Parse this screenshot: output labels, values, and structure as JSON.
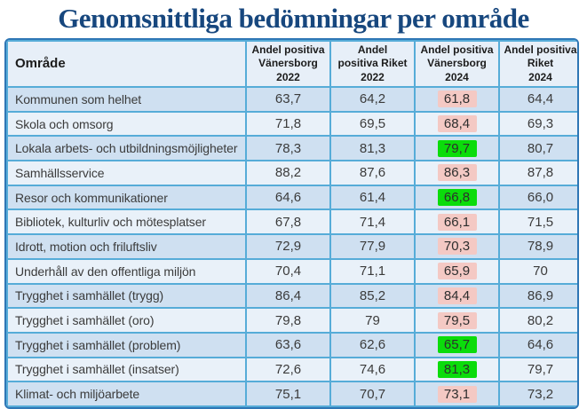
{
  "title": "Genomsnittliga bedömningar per område",
  "table": {
    "headers": {
      "area": "Område",
      "vanersborg_2022": "Andel positiva\nVänersborg\n2022",
      "riket_2022": "Andel\npositiva Riket\n2022",
      "vanersborg_2024": "Andel positiva\nVänersborg\n2024",
      "riket_2024": "Andel positiva\nRiket\n2024"
    },
    "rows": [
      {
        "area": "Kommunen som helhet",
        "vanersborg_2022": "63,7",
        "riket_2022": "64,2",
        "vanersborg_2024": "61,8",
        "highlight_2024": "negative",
        "riket_2024": "64,4"
      },
      {
        "area": "Skola och omsorg",
        "vanersborg_2022": "71,8",
        "riket_2022": "69,5",
        "vanersborg_2024": "68,4",
        "highlight_2024": "negative",
        "riket_2024": "69,3"
      },
      {
        "area": "Lokala arbets- och utbildningsmöjligheter",
        "vanersborg_2022": "78,3",
        "riket_2022": "81,3",
        "vanersborg_2024": "79,7",
        "highlight_2024": "positive",
        "riket_2024": "80,7"
      },
      {
        "area": "Samhällsservice",
        "vanersborg_2022": "88,2",
        "riket_2022": "87,6",
        "vanersborg_2024": "86,3",
        "highlight_2024": "negative",
        "riket_2024": "87,8"
      },
      {
        "area": "Resor och kommunikationer",
        "vanersborg_2022": "64,6",
        "riket_2022": "61,4",
        "vanersborg_2024": "66,8",
        "highlight_2024": "positive",
        "riket_2024": "66,0"
      },
      {
        "area": "Bibliotek, kulturliv och mötesplatser",
        "vanersborg_2022": "67,8",
        "riket_2022": "71,4",
        "vanersborg_2024": "66,1",
        "highlight_2024": "negative",
        "riket_2024": "71,5"
      },
      {
        "area": "Idrott, motion och friluftsliv",
        "vanersborg_2022": "72,9",
        "riket_2022": "77,9",
        "vanersborg_2024": "70,3",
        "highlight_2024": "negative",
        "riket_2024": "78,9"
      },
      {
        "area": "Underhåll av den offentliga miljön",
        "vanersborg_2022": "70,4",
        "riket_2022": "71,1",
        "vanersborg_2024": "65,9",
        "highlight_2024": "negative",
        "riket_2024": "70"
      },
      {
        "area": "Trygghet i samhället (trygg)",
        "vanersborg_2022": "86,4",
        "riket_2022": "85,2",
        "vanersborg_2024": "84,4",
        "highlight_2024": "negative",
        "riket_2024": "86,9"
      },
      {
        "area": "Trygghet i samhället (oro)",
        "vanersborg_2022": "79,8",
        "riket_2022": "79",
        "vanersborg_2024": "79,5",
        "highlight_2024": "negative",
        "riket_2024": "80,2"
      },
      {
        "area": "Trygghet i samhället (problem)",
        "vanersborg_2022": "63,6",
        "riket_2022": "62,6",
        "vanersborg_2024": "65,7",
        "highlight_2024": "positive",
        "riket_2024": "64,6"
      },
      {
        "area": "Trygghet i samhället (insatser)",
        "vanersborg_2022": "72,6",
        "riket_2022": "74,6",
        "vanersborg_2024": "81,3",
        "highlight_2024": "positive",
        "riket_2024": "79,7"
      },
      {
        "area": "Klimat- och miljöarbete",
        "vanersborg_2022": "75,1",
        "riket_2022": "70,7",
        "vanersborg_2024": "73,1",
        "highlight_2024": "negative",
        "riket_2024": "73,2"
      }
    ]
  },
  "chart_data": {
    "type": "table",
    "title": "Genomsnittliga bedömningar per område",
    "columns": [
      "Område",
      "Andel positiva Vänersborg 2022",
      "Andel positiva Riket 2022",
      "Andel positiva Vänersborg 2024",
      "Andel positiva Riket 2024"
    ],
    "rows": [
      [
        "Kommunen som helhet",
        63.7,
        64.2,
        61.8,
        64.4
      ],
      [
        "Skola och omsorg",
        71.8,
        69.5,
        68.4,
        69.3
      ],
      [
        "Lokala arbets- och utbildningsmöjligheter",
        78.3,
        81.3,
        79.7,
        80.7
      ],
      [
        "Samhällsservice",
        88.2,
        87.6,
        86.3,
        87.8
      ],
      [
        "Resor och kommunikationer",
        64.6,
        61.4,
        66.8,
        66.0
      ],
      [
        "Bibliotek, kulturliv och mötesplatser",
        67.8,
        71.4,
        66.1,
        71.5
      ],
      [
        "Idrott, motion och friluftsliv",
        72.9,
        77.9,
        70.3,
        78.9
      ],
      [
        "Underhåll av den offentliga miljön",
        70.4,
        71.1,
        65.9,
        70
      ],
      [
        "Trygghet i samhället (trygg)",
        86.4,
        85.2,
        84.4,
        86.9
      ],
      [
        "Trygghet i samhället (oro)",
        79.8,
        79,
        79.5,
        80.2
      ],
      [
        "Trygghet i samhället (problem)",
        63.6,
        62.6,
        65.7,
        64.6
      ],
      [
        "Trygghet i samhället (insatser)",
        72.6,
        74.6,
        81.3,
        79.7
      ],
      [
        "Klimat- och miljöarbete",
        75.1,
        70.7,
        73.1,
        73.2
      ]
    ],
    "highlight_column": "Andel positiva Vänersborg 2024",
    "highlight_green_rows": [
      "Lokala arbets- och utbildningsmöjligheter",
      "Resor och kommunikationer",
      "Trygghet i samhället (problem)",
      "Trygghet i samhället (insatser)"
    ],
    "highlight_pink_rows": [
      "Kommunen som helhet",
      "Skola och omsorg",
      "Samhällsservice",
      "Bibliotek, kulturliv och mötesplatser",
      "Idrott, motion och friluftsliv",
      "Underhåll av den offentliga miljön",
      "Trygghet i samhället (trygg)",
      "Trygghet i samhället (oro)",
      "Klimat- och miljöarbete"
    ]
  },
  "colors": {
    "title_color": "#17477E",
    "outer_border": "#2E76B5",
    "inner_border": "#56ACD8",
    "header_bg": "#E7EFF8",
    "row_odd_bg": "#CFE0F1",
    "row_even_bg": "#E9F1F9",
    "highlight_negative": "#F4C9C4",
    "highlight_positive": "#0BDC0B"
  }
}
